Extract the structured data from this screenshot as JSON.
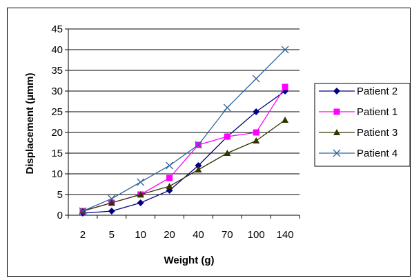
{
  "chart_data": {
    "type": "line",
    "xlabel": "Weight (g)",
    "ylabel": "Displacement (µmm)",
    "categories": [
      "2",
      "5",
      "10",
      "20",
      "40",
      "70",
      "100",
      "140"
    ],
    "ylim": [
      0,
      45
    ],
    "yticks": [
      "0",
      "5",
      "10",
      "15",
      "20",
      "25",
      "30",
      "35",
      "40",
      "45"
    ],
    "grid": true,
    "legend_position": "right",
    "series": [
      {
        "name": "Patient 2",
        "color": "#000080",
        "marker": "diamond",
        "values": [
          0.5,
          1,
          3,
          6,
          12,
          19,
          25,
          30
        ]
      },
      {
        "name": "Patient 1",
        "color": "#FF00FF",
        "marker": "square",
        "values": [
          1,
          3,
          5,
          9,
          17,
          19,
          20,
          31
        ]
      },
      {
        "name": "Patient 3",
        "color": "#333300",
        "marker": "triangle",
        "values": [
          1,
          3,
          5,
          7,
          11,
          15,
          18,
          23
        ]
      },
      {
        "name": "Patient 4",
        "color": "#336699",
        "marker": "x",
        "values": [
          1,
          4,
          8,
          12,
          17,
          26,
          33,
          40
        ]
      }
    ]
  }
}
